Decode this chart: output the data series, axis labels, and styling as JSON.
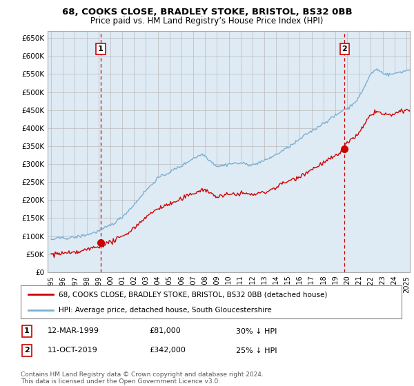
{
  "title": "68, COOKS CLOSE, BRADLEY STOKE, BRISTOL, BS32 0BB",
  "subtitle": "Price paid vs. HM Land Registry’s House Price Index (HPI)",
  "ylabel_ticks": [
    "£0",
    "£50K",
    "£100K",
    "£150K",
    "£200K",
    "£250K",
    "£300K",
    "£350K",
    "£400K",
    "£450K",
    "£500K",
    "£550K",
    "£600K",
    "£650K"
  ],
  "ytick_vals": [
    0,
    50000,
    100000,
    150000,
    200000,
    250000,
    300000,
    350000,
    400000,
    450000,
    500000,
    550000,
    600000,
    650000
  ],
  "ylim": [
    0,
    670000
  ],
  "xlim_start": 1994.7,
  "xlim_end": 2025.3,
  "hpi_color": "#7ab0d4",
  "hpi_fill_color": "#deeaf4",
  "price_color": "#cc0000",
  "marker1_date": 1999.19,
  "marker1_price": 81000,
  "marker1_label": "1",
  "marker2_date": 2019.78,
  "marker2_price": 342000,
  "marker2_label": "2",
  "legend_line1": "68, COOKS CLOSE, BRADLEY STOKE, BRISTOL, BS32 0BB (detached house)",
  "legend_line2": "HPI: Average price, detached house, South Gloucestershire",
  "marker1_text_date": "12-MAR-1999",
  "marker1_text_price": "£81,000",
  "marker1_text_hpi": "30% ↓ HPI",
  "marker2_text_date": "11-OCT-2019",
  "marker2_text_price": "£342,000",
  "marker2_text_hpi": "25% ↓ HPI",
  "footnote": "Contains HM Land Registry data © Crown copyright and database right 2024.\nThis data is licensed under the Open Government Licence v3.0.",
  "background_color": "#ffffff",
  "grid_color": "#cccccc",
  "vline_color": "#cc0000",
  "box_color": "#cc0000"
}
